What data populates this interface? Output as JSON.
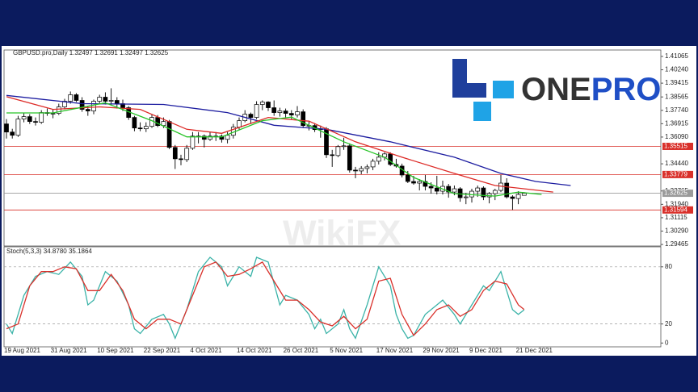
{
  "chart_data": [
    {
      "type": "candlestick",
      "title": "GBPUSD.pro,Daily  1.32497 1.32691 1.32497 1.32625",
      "categories": [
        "19 Aug 2021",
        null,
        null,
        null,
        null,
        null,
        null,
        null,
        "31 Aug 2021",
        null,
        null,
        null,
        null,
        null,
        null,
        null,
        "10 Sep 2021",
        null,
        null,
        null,
        null,
        null,
        null,
        null,
        "22 Sep 2021",
        null,
        null,
        null,
        null,
        null,
        null,
        null,
        "4 Oct 2021",
        null,
        null,
        null,
        null,
        null,
        null,
        null,
        "14 Oct 2021",
        null,
        null,
        null,
        null,
        null,
        null,
        null,
        "26 Oct 2021",
        null,
        null,
        null,
        null,
        null,
        null,
        null,
        "5 Nov 2021",
        null,
        null,
        null,
        null,
        null,
        null,
        null,
        "17 Nov 2021",
        null,
        null,
        null,
        null,
        null,
        null,
        null,
        "29 Nov 2021",
        null,
        null,
        null,
        null,
        null,
        null,
        null,
        "9 Dec 2021",
        null,
        null,
        null,
        null,
        null,
        null,
        null,
        "21 Dec 2021",
        null
      ],
      "open": [
        1.369,
        1.364,
        1.362,
        1.372,
        1.3735,
        1.3705,
        1.37,
        1.376,
        1.3755,
        1.3755,
        1.3795,
        1.383,
        1.387,
        1.3835,
        1.378,
        1.377,
        1.383,
        1.3855,
        1.383,
        1.3835,
        1.3815,
        1.379,
        1.373,
        1.3665,
        1.366,
        1.3675,
        1.373,
        1.368,
        1.3705,
        1.3545,
        1.3475,
        1.347,
        1.354,
        1.3615,
        1.3615,
        1.3595,
        1.3615,
        1.3615,
        1.3595,
        1.362,
        1.367,
        1.371,
        1.375,
        1.373,
        1.381,
        1.3825,
        1.379,
        1.376,
        1.377,
        1.3755,
        1.3745,
        1.3765,
        1.368,
        1.368,
        1.3655,
        1.366,
        1.35,
        1.3495,
        1.355,
        1.3555,
        1.3405,
        1.34,
        1.3415,
        1.3425,
        1.346,
        1.3485,
        1.3505,
        1.344,
        1.343,
        1.3375,
        1.3335,
        1.3325,
        1.3335,
        1.3305,
        1.3295,
        1.3275,
        1.3305,
        1.327,
        1.329,
        1.3235,
        1.324,
        1.3275,
        1.3295,
        1.324,
        1.326,
        1.328,
        1.3325,
        1.324,
        1.323,
        1.32497
      ],
      "high": [
        1.372,
        1.366,
        1.374,
        1.376,
        1.375,
        1.373,
        1.3775,
        1.3785,
        1.378,
        1.3815,
        1.3845,
        1.389,
        1.388,
        1.3855,
        1.38,
        1.384,
        1.387,
        1.3885,
        1.391,
        1.3855,
        1.384,
        1.38,
        1.374,
        1.37,
        1.37,
        1.375,
        1.3745,
        1.373,
        1.3715,
        1.356,
        1.35,
        1.356,
        1.364,
        1.364,
        1.3625,
        1.364,
        1.364,
        1.3625,
        1.364,
        1.369,
        1.373,
        1.3775,
        1.376,
        1.383,
        1.3835,
        1.383,
        1.3835,
        1.379,
        1.3785,
        1.3775,
        1.38,
        1.378,
        1.3705,
        1.3695,
        1.368,
        1.367,
        1.353,
        1.356,
        1.3605,
        1.357,
        1.3425,
        1.343,
        1.344,
        1.3475,
        1.3515,
        1.3515,
        1.3515,
        1.3475,
        1.3445,
        1.34,
        1.337,
        1.335,
        1.3375,
        1.333,
        1.337,
        1.334,
        1.332,
        1.331,
        1.33,
        1.3265,
        1.329,
        1.331,
        1.3305,
        1.327,
        1.329,
        1.3375,
        1.3355,
        1.325,
        1.3275,
        1.32691
      ],
      "low": [
        1.36,
        1.36,
        1.361,
        1.37,
        1.369,
        1.368,
        1.369,
        1.374,
        1.3725,
        1.3745,
        1.378,
        1.3815,
        1.3825,
        1.3765,
        1.374,
        1.375,
        1.381,
        1.381,
        1.3805,
        1.3785,
        1.377,
        1.3715,
        1.3645,
        1.3645,
        1.364,
        1.3665,
        1.367,
        1.3665,
        1.3535,
        1.3412,
        1.3435,
        1.3455,
        1.353,
        1.357,
        1.3545,
        1.3585,
        1.3585,
        1.3575,
        1.357,
        1.36,
        1.3655,
        1.37,
        1.369,
        1.372,
        1.3775,
        1.377,
        1.374,
        1.3735,
        1.373,
        1.372,
        1.373,
        1.3665,
        1.365,
        1.364,
        1.3605,
        1.348,
        1.3425,
        1.3485,
        1.353,
        1.339,
        1.3355,
        1.338,
        1.3385,
        1.3405,
        1.344,
        1.3465,
        1.343,
        1.342,
        1.336,
        1.3325,
        1.3315,
        1.328,
        1.328,
        1.326,
        1.3255,
        1.3255,
        1.3235,
        1.325,
        1.321,
        1.3195,
        1.3205,
        1.324,
        1.322,
        1.32,
        1.322,
        1.327,
        1.323,
        1.316,
        1.3195,
        1.32497
      ],
      "close": [
        1.364,
        1.362,
        1.372,
        1.3735,
        1.3705,
        1.37,
        1.376,
        1.3755,
        1.3755,
        1.3795,
        1.383,
        1.387,
        1.3835,
        1.378,
        1.377,
        1.383,
        1.3855,
        1.383,
        1.3835,
        1.3815,
        1.379,
        1.373,
        1.3665,
        1.366,
        1.3675,
        1.373,
        1.368,
        1.3705,
        1.3545,
        1.3475,
        1.347,
        1.354,
        1.3615,
        1.3615,
        1.3595,
        1.3615,
        1.3615,
        1.3595,
        1.362,
        1.367,
        1.371,
        1.375,
        1.373,
        1.381,
        1.3825,
        1.379,
        1.376,
        1.377,
        1.3755,
        1.3745,
        1.3765,
        1.368,
        1.368,
        1.3655,
        1.366,
        1.35,
        1.3495,
        1.355,
        1.3555,
        1.3405,
        1.34,
        1.3415,
        1.3425,
        1.346,
        1.3485,
        1.3505,
        1.344,
        1.343,
        1.3375,
        1.3335,
        1.3325,
        1.3335,
        1.3305,
        1.3295,
        1.3275,
        1.3305,
        1.327,
        1.329,
        1.3235,
        1.324,
        1.3275,
        1.3295,
        1.324,
        1.326,
        1.328,
        1.3325,
        1.324,
        1.323,
        1.3255,
        1.32625
      ],
      "ylim": [
        1.2937,
        1.4146
      ],
      "yticks": [
        1.41065,
        {
          "value": 1.4024,
          "label": "1.40240"
        },
        1.39415,
        1.38565,
        {
          "value": 1.3774,
          "label": "1.37740"
        },
        1.36915,
        {
          "value": 1.3609,
          "label": "1.36090"
        },
        {
          "value": 1.3444,
          "label": "1.34440"
        },
        1.32765,
        {
          "value": 1.3194,
          "label": "1.31940"
        },
        1.31115,
        {
          "value": 1.3029,
          "label": "1.30290"
        },
        1.29465
      ],
      "levels": [
        {
          "value": 1.35515,
          "color": "#d9302a"
        },
        {
          "value": 1.33779,
          "color": "#d9302a"
        },
        {
          "value": 1.31594,
          "color": "#d9302a"
        },
        {
          "value": 1.32625,
          "color": "#9a9a9a"
        }
      ],
      "series": [
        {
          "color": "#1c1ca0",
          "x": [
            0,
            13,
            27,
            38,
            46,
            55,
            66,
            77,
            85,
            91,
            97
          ],
          "values": [
            1.3866,
            1.3815,
            1.381,
            1.376,
            1.3682,
            1.3657,
            1.358,
            1.3485,
            1.3385,
            1.3335,
            1.331
          ]
        },
        {
          "color": "#dd2a26",
          "x": [
            0,
            8,
            16,
            23,
            31,
            37,
            45,
            52,
            60,
            68,
            77,
            84,
            94
          ],
          "values": [
            1.3858,
            1.378,
            1.3795,
            1.378,
            1.3657,
            1.3632,
            1.373,
            1.3707,
            1.358,
            1.3485,
            1.3385,
            1.331,
            1.327
          ]
        },
        {
          "color": "#27c427",
          "x": [
            0,
            8,
            17,
            25,
            31,
            37,
            44,
            49,
            58,
            65,
            70,
            77,
            84,
            88,
            92
          ],
          "values": [
            1.3758,
            1.3758,
            1.382,
            1.371,
            1.361,
            1.361,
            1.371,
            1.3732,
            1.358,
            1.3485,
            1.336,
            1.326,
            1.3245,
            1.327,
            1.3255
          ]
        }
      ]
    },
    {
      "type": "line",
      "title": "Stoch(5,3,3) 34.8780 35.1864",
      "ylim": [
        -4,
        101
      ],
      "yticks": [
        0,
        20,
        80
      ],
      "levels": [
        20,
        80
      ],
      "series": [
        {
          "color": "#3bb3a8",
          "x": [
            0,
            1,
            3,
            5,
            7,
            9,
            11,
            13,
            14,
            15,
            17,
            19,
            21,
            22,
            23,
            25,
            27,
            28,
            29,
            31,
            33,
            35,
            37,
            38,
            40,
            42,
            43,
            45,
            47,
            48,
            50,
            52,
            53,
            54,
            55,
            57,
            58,
            59,
            60,
            62,
            64,
            66,
            67,
            68,
            69,
            70,
            72,
            74,
            75,
            77,
            78,
            80,
            82,
            83,
            85,
            86,
            87,
            88,
            89
          ],
          "values": [
            20,
            10,
            50,
            70,
            75,
            72,
            85,
            70,
            40,
            45,
            75,
            65,
            40,
            15,
            10,
            25,
            30,
            20,
            5,
            35,
            75,
            90,
            80,
            60,
            80,
            70,
            90,
            85,
            40,
            50,
            45,
            30,
            15,
            25,
            10,
            20,
            35,
            15,
            5,
            40,
            80,
            60,
            30,
            15,
            5,
            8,
            30,
            40,
            45,
            30,
            20,
            40,
            60,
            55,
            75,
            55,
            35,
            30,
            34.878
          ]
        },
        {
          "color": "#d9302a",
          "x": [
            0,
            2,
            4,
            6,
            8,
            10,
            12,
            14,
            16,
            18,
            20,
            22,
            24,
            26,
            28,
            30,
            32,
            34,
            36,
            38,
            40,
            42,
            44,
            46,
            48,
            50,
            52,
            54,
            56,
            58,
            60,
            62,
            64,
            66,
            68,
            70,
            72,
            74,
            76,
            78,
            80,
            82,
            84,
            86,
            88,
            89
          ],
          "values": [
            15,
            20,
            60,
            75,
            75,
            80,
            78,
            55,
            55,
            72,
            55,
            25,
            15,
            25,
            25,
            20,
            50,
            80,
            85,
            70,
            72,
            78,
            85,
            65,
            45,
            45,
            35,
            22,
            18,
            28,
            15,
            25,
            65,
            68,
            30,
            8,
            20,
            35,
            40,
            28,
            35,
            55,
            65,
            62,
            40,
            35.1864
          ]
        }
      ]
    }
  ],
  "logo": [
    "ONE",
    "PRO"
  ],
  "watermark": "WikiFX"
}
